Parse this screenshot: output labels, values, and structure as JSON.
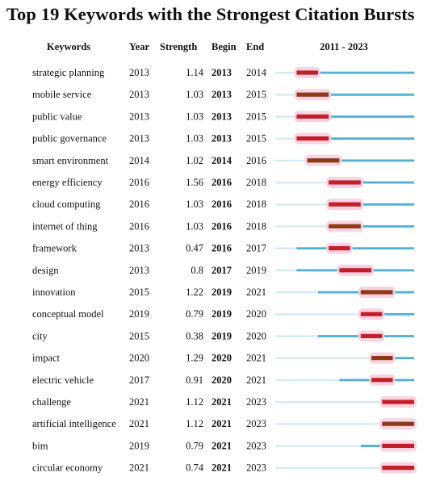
{
  "title": "Top 19 Keywords with the Strongest Citation Bursts",
  "headers": {
    "keywords": "Keywords",
    "year": "Year",
    "strength": "Strength",
    "begin": "Begin",
    "end": "End",
    "range": "2011 - 2023"
  },
  "colors": {
    "baseline": "#4fb0d0",
    "burst": "#c0202a",
    "burst_dark": "#8c3a1a",
    "highlight": "#f7cfe0"
  },
  "chart_data": {
    "type": "table",
    "year_range": [
      2011,
      2023
    ],
    "columns": [
      "Keywords",
      "Year",
      "Strength",
      "Begin",
      "End",
      "2011 - 2023"
    ],
    "rows": [
      {
        "keyword": "strategic planning",
        "year": "2013",
        "strength": "1.14",
        "begin": "2013",
        "end": "2014"
      },
      {
        "keyword": "mobile service",
        "year": "2013",
        "strength": "1.03",
        "begin": "2013",
        "end": "2015"
      },
      {
        "keyword": "public value",
        "year": "2013",
        "strength": "1.03",
        "begin": "2013",
        "end": "2015"
      },
      {
        "keyword": "public governance",
        "year": "2013",
        "strength": "1.03",
        "begin": "2013",
        "end": "2015"
      },
      {
        "keyword": "smart environment",
        "year": "2014",
        "strength": "1.02",
        "begin": "2014",
        "end": "2016"
      },
      {
        "keyword": "energy efficiency",
        "year": "2016",
        "strength": "1.56",
        "begin": "2016",
        "end": "2018"
      },
      {
        "keyword": "cloud computing",
        "year": "2016",
        "strength": "1.03",
        "begin": "2016",
        "end": "2018"
      },
      {
        "keyword": "internet of thing",
        "year": "2016",
        "strength": "1.03",
        "begin": "2016",
        "end": "2018"
      },
      {
        "keyword": "framework",
        "year": "2013",
        "strength": "0.47",
        "begin": "2016",
        "end": "2017"
      },
      {
        "keyword": "design",
        "year": "2013",
        "strength": "0.8",
        "begin": "2017",
        "end": "2019"
      },
      {
        "keyword": "innovation",
        "year": "2015",
        "strength": "1.22",
        "begin": "2019",
        "end": "2021"
      },
      {
        "keyword": "conceptual model",
        "year": "2019",
        "strength": "0.79",
        "begin": "2019",
        "end": "2020"
      },
      {
        "keyword": "city",
        "year": "2015",
        "strength": "0.38",
        "begin": "2019",
        "end": "2020"
      },
      {
        "keyword": "impact",
        "year": "2020",
        "strength": "1.29",
        "begin": "2020",
        "end": "2021"
      },
      {
        "keyword": "electric vehicle",
        "year": "2017",
        "strength": "0.91",
        "begin": "2020",
        "end": "2021"
      },
      {
        "keyword": "challenge",
        "year": "2021",
        "strength": "1.12",
        "begin": "2021",
        "end": "2023"
      },
      {
        "keyword": "artificial intelligence",
        "year": "2021",
        "strength": "1.12",
        "begin": "2021",
        "end": "2023"
      },
      {
        "keyword": "bim",
        "year": "2019",
        "strength": "0.79",
        "begin": "2021",
        "end": "2023"
      },
      {
        "keyword": "circular economy",
        "year": "2021",
        "strength": "0.74",
        "begin": "2021",
        "end": "2023"
      }
    ]
  }
}
